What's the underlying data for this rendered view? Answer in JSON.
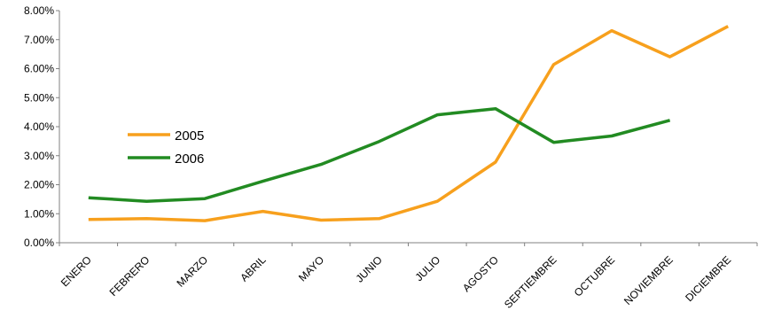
{
  "chart_data": {
    "type": "line",
    "title": "",
    "xlabel": "",
    "ylabel": "",
    "categories": [
      "ENERO",
      "FEBRERO",
      "MARZO",
      "ABRIL",
      "MAYO",
      "JUNIO",
      "JULIO",
      "AGOSTO",
      "SEPTIEMBRE",
      "OCTUBRE",
      "NOVIEMBRE",
      "DICIEMBRE"
    ],
    "ylim": [
      0,
      0.08
    ],
    "yticks": [
      0,
      0.01,
      0.02,
      0.03,
      0.04,
      0.05,
      0.06,
      0.07,
      0.08
    ],
    "ytick_labels": [
      "0.00%",
      "1.00%",
      "2.00%",
      "3.00%",
      "4.00%",
      "5.00%",
      "6.00%",
      "7.00%",
      "8.00%"
    ],
    "grid": false,
    "legend_position": "left",
    "series": [
      {
        "name": "2005",
        "color": "#f7a01d",
        "values": [
          0.008,
          0.0083,
          0.0076,
          0.0108,
          0.0078,
          0.0083,
          0.0143,
          0.0278,
          0.0614,
          0.0731,
          0.0641,
          0.0746
        ]
      },
      {
        "name": "2006",
        "color": "#228b22",
        "values": [
          0.0155,
          0.0143,
          0.0152,
          0.0212,
          0.027,
          0.0349,
          0.0441,
          0.0462,
          0.0346,
          0.0368,
          0.0422,
          null
        ]
      }
    ]
  }
}
